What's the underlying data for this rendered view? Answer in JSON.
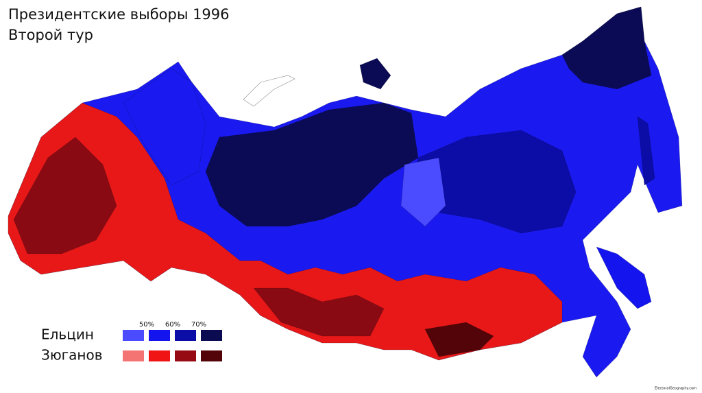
{
  "header": {
    "title": "Президентские выборы 1996",
    "subtitle": "Второй тур"
  },
  "legend": {
    "thresholds": [
      "50%",
      "60%",
      "70%"
    ],
    "rows": [
      {
        "name": "Ельцин",
        "colors": [
          "#4b4bff",
          "#1414ee",
          "#0c0ca6",
          "#0b0b52"
        ]
      },
      {
        "name": "Зюганов",
        "colors": [
          "#f47474",
          "#f01414",
          "#960a14",
          "#520408"
        ]
      }
    ]
  },
  "credit": "ElectoralGeography.com"
}
